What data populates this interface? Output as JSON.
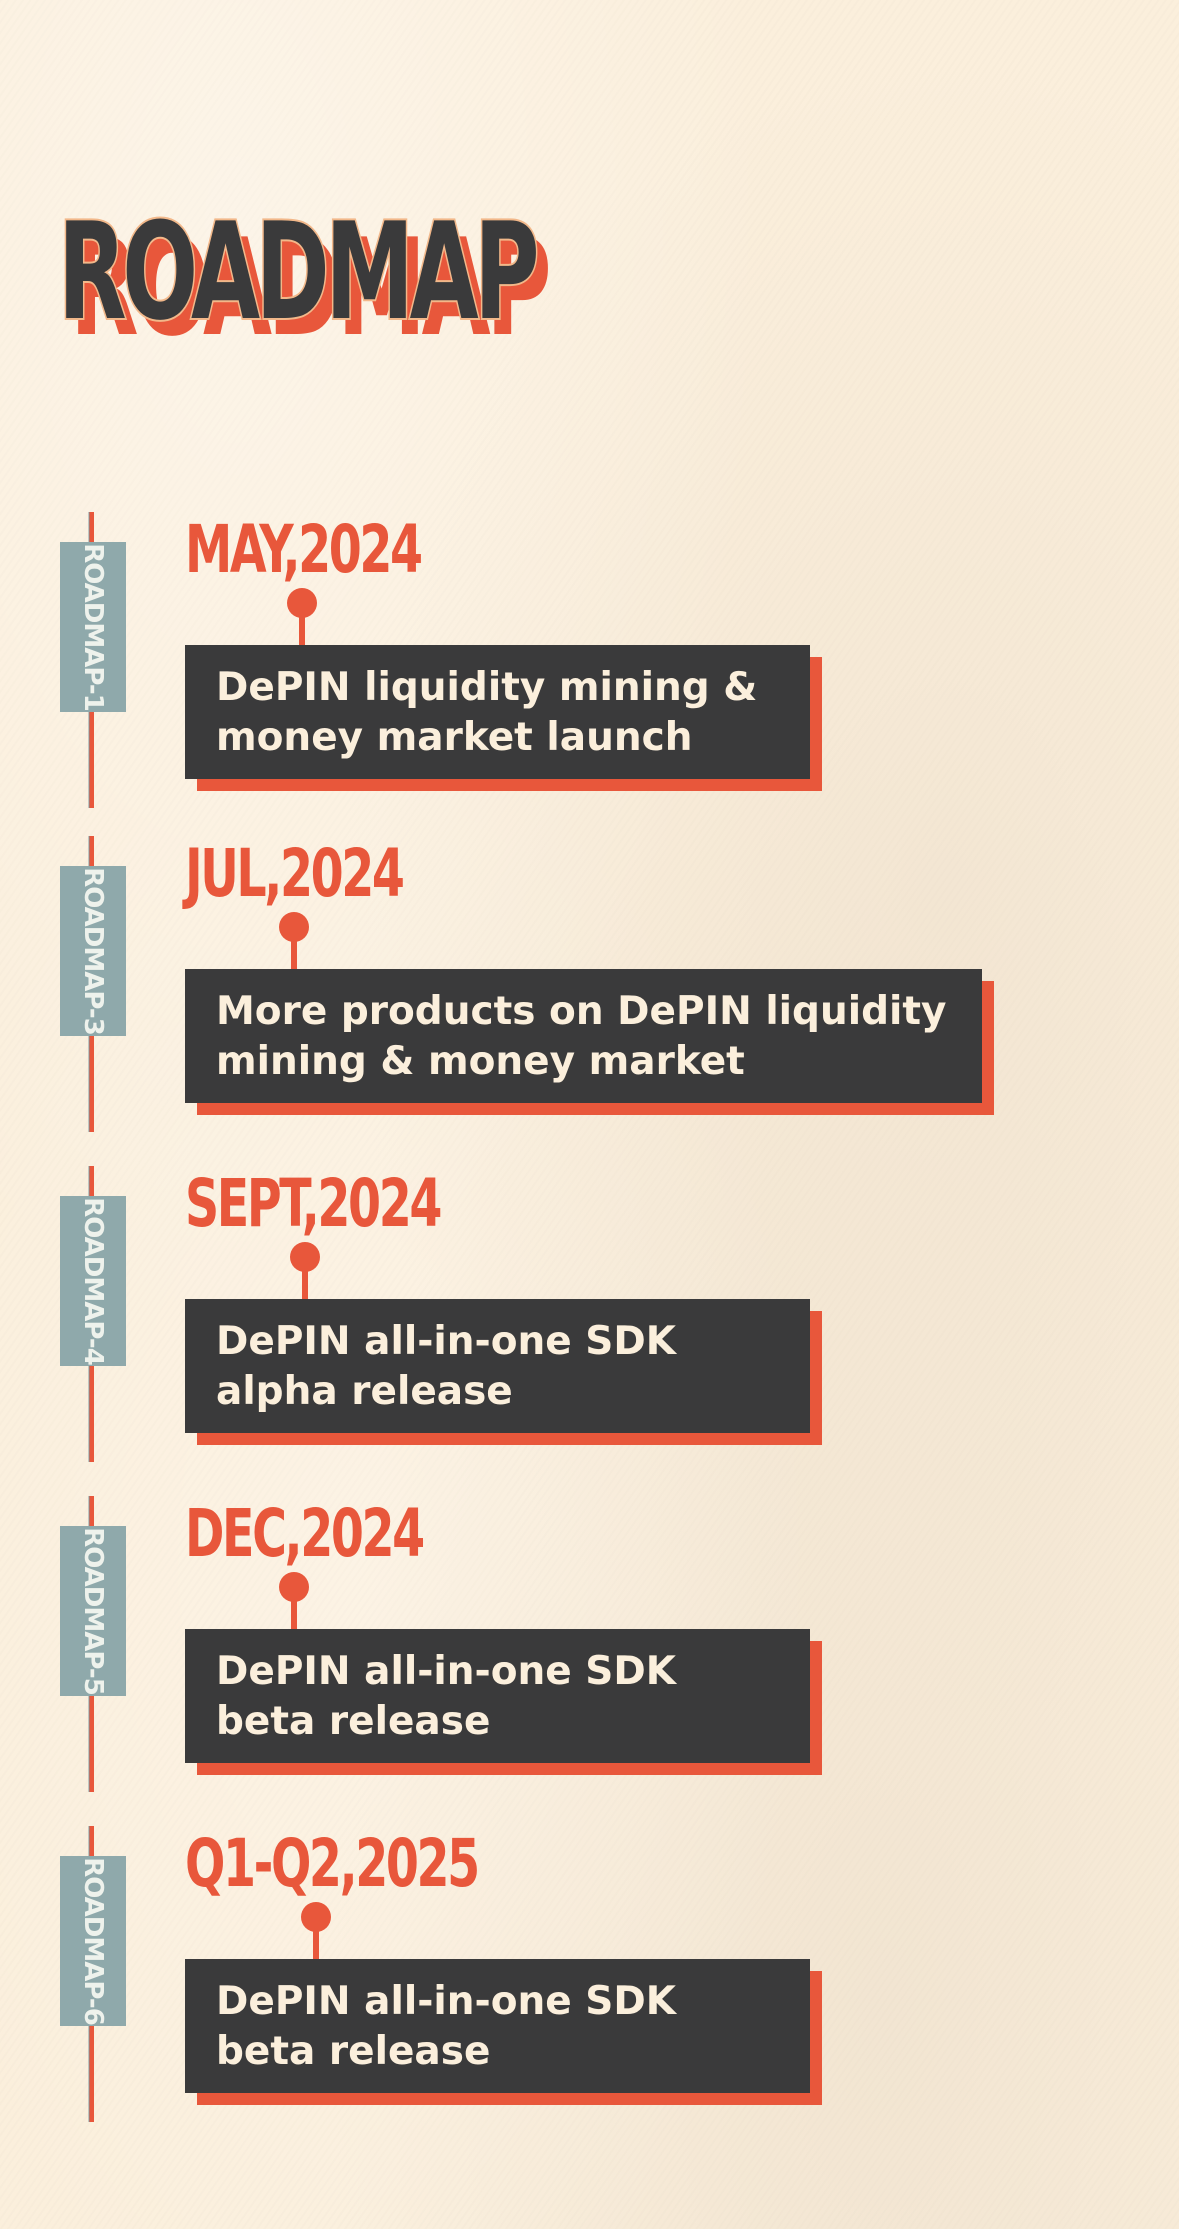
{
  "title": "ROADMAP",
  "colors": {
    "background": "#fbefdc",
    "accent": "#e8573b",
    "card": "#3a3a3b",
    "tab": "#8fa9ab",
    "title_outline": "#f2b88a"
  },
  "milestones": [
    {
      "tab": "ROADMAP-1",
      "date": "MAY,2024",
      "text": "DePIN liquidity mining &\nmoney market launch"
    },
    {
      "tab": "ROADMAP-3",
      "date": "JUL,2024",
      "text": "More products on DePIN liquidity\nmining & money market"
    },
    {
      "tab": "ROADMAP-4",
      "date": "SEPT,2024",
      "text": "DePIN all-in-one SDK\nalpha release"
    },
    {
      "tab": "ROADMAP-5",
      "date": "DEC,2024",
      "text": "DePIN all-in-one SDK\nbeta release"
    },
    {
      "tab": "ROADMAP-6",
      "date": "Q1-Q2,2025",
      "text": "DePIN all-in-one SDK\nbeta release"
    }
  ]
}
